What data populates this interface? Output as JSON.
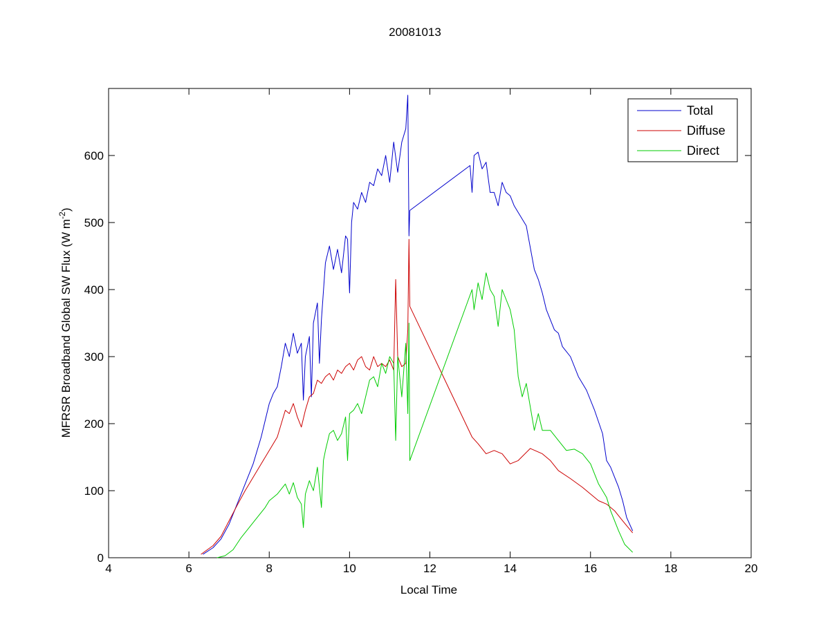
{
  "chart_data": {
    "type": "line",
    "title": "20081013",
    "xlabel": "Local Time",
    "ylabel_main": "MFRSR Broadband Global SW Flux (W m",
    "ylabel_exp": "-2",
    "ylabel_close": ")",
    "xlim": [
      4,
      20
    ],
    "ylim": [
      0,
      700
    ],
    "xticks": [
      "4",
      "6",
      "8",
      "10",
      "12",
      "14",
      "16",
      "18",
      "20"
    ],
    "yticks": [
      "0",
      "100",
      "200",
      "300",
      "400",
      "500",
      "600"
    ],
    "grid": false,
    "legend_position": "top-right",
    "series": [
      {
        "name": "Total",
        "color": "#0000cc",
        "points": [
          [
            6.35,
            5
          ],
          [
            6.6,
            15
          ],
          [
            6.8,
            28
          ],
          [
            7.0,
            50
          ],
          [
            7.2,
            80
          ],
          [
            7.4,
            110
          ],
          [
            7.6,
            140
          ],
          [
            7.8,
            180
          ],
          [
            8.0,
            230
          ],
          [
            8.1,
            245
          ],
          [
            8.2,
            255
          ],
          [
            8.3,
            285
          ],
          [
            8.4,
            320
          ],
          [
            8.5,
            300
          ],
          [
            8.6,
            335
          ],
          [
            8.7,
            305
          ],
          [
            8.8,
            320
          ],
          [
            8.85,
            235
          ],
          [
            8.9,
            300
          ],
          [
            9.0,
            330
          ],
          [
            9.05,
            240
          ],
          [
            9.1,
            350
          ],
          [
            9.2,
            380
          ],
          [
            9.25,
            290
          ],
          [
            9.3,
            355
          ],
          [
            9.4,
            440
          ],
          [
            9.5,
            465
          ],
          [
            9.6,
            430
          ],
          [
            9.7,
            460
          ],
          [
            9.8,
            425
          ],
          [
            9.9,
            480
          ],
          [
            9.95,
            475
          ],
          [
            10.0,
            395
          ],
          [
            10.05,
            500
          ],
          [
            10.1,
            530
          ],
          [
            10.2,
            520
          ],
          [
            10.3,
            545
          ],
          [
            10.4,
            530
          ],
          [
            10.5,
            560
          ],
          [
            10.6,
            555
          ],
          [
            10.7,
            580
          ],
          [
            10.8,
            570
          ],
          [
            10.9,
            600
          ],
          [
            11.0,
            560
          ],
          [
            11.1,
            620
          ],
          [
            11.2,
            575
          ],
          [
            11.3,
            620
          ],
          [
            11.4,
            640
          ],
          [
            11.45,
            690
          ],
          [
            11.48,
            480
          ],
          [
            11.5,
            518
          ],
          [
            13.0,
            585
          ],
          [
            13.05,
            545
          ],
          [
            13.1,
            600
          ],
          [
            13.2,
            605
          ],
          [
            13.3,
            580
          ],
          [
            13.4,
            590
          ],
          [
            13.5,
            545
          ],
          [
            13.6,
            545
          ],
          [
            13.7,
            525
          ],
          [
            13.8,
            560
          ],
          [
            13.9,
            545
          ],
          [
            14.0,
            540
          ],
          [
            14.1,
            525
          ],
          [
            14.2,
            515
          ],
          [
            14.4,
            495
          ],
          [
            14.6,
            430
          ],
          [
            14.7,
            415
          ],
          [
            14.8,
            395
          ],
          [
            14.9,
            370
          ],
          [
            15.0,
            355
          ],
          [
            15.1,
            340
          ],
          [
            15.2,
            335
          ],
          [
            15.3,
            315
          ],
          [
            15.5,
            300
          ],
          [
            15.7,
            270
          ],
          [
            15.9,
            250
          ],
          [
            16.1,
            220
          ],
          [
            16.3,
            185
          ],
          [
            16.4,
            145
          ],
          [
            16.5,
            135
          ],
          [
            16.6,
            120
          ],
          [
            16.7,
            105
          ],
          [
            16.8,
            85
          ],
          [
            16.9,
            60
          ],
          [
            17.05,
            40
          ]
        ]
      },
      {
        "name": "Diffuse",
        "color": "#cc0000",
        "points": [
          [
            6.3,
            5
          ],
          [
            6.6,
            18
          ],
          [
            6.8,
            32
          ],
          [
            7.0,
            55
          ],
          [
            7.2,
            78
          ],
          [
            7.4,
            100
          ],
          [
            7.6,
            120
          ],
          [
            7.8,
            140
          ],
          [
            8.0,
            160
          ],
          [
            8.2,
            180
          ],
          [
            8.3,
            200
          ],
          [
            8.4,
            220
          ],
          [
            8.5,
            215
          ],
          [
            8.6,
            230
          ],
          [
            8.7,
            210
          ],
          [
            8.8,
            195
          ],
          [
            8.9,
            220
          ],
          [
            9.0,
            240
          ],
          [
            9.1,
            245
          ],
          [
            9.2,
            265
          ],
          [
            9.3,
            260
          ],
          [
            9.4,
            270
          ],
          [
            9.5,
            275
          ],
          [
            9.6,
            265
          ],
          [
            9.7,
            280
          ],
          [
            9.8,
            275
          ],
          [
            9.9,
            285
          ],
          [
            10.0,
            290
          ],
          [
            10.1,
            280
          ],
          [
            10.2,
            295
          ],
          [
            10.3,
            300
          ],
          [
            10.4,
            285
          ],
          [
            10.5,
            280
          ],
          [
            10.6,
            300
          ],
          [
            10.7,
            285
          ],
          [
            10.8,
            290
          ],
          [
            10.9,
            285
          ],
          [
            11.0,
            295
          ],
          [
            11.1,
            280
          ],
          [
            11.15,
            415
          ],
          [
            11.2,
            300
          ],
          [
            11.3,
            285
          ],
          [
            11.4,
            290
          ],
          [
            11.45,
            340
          ],
          [
            11.48,
            475
          ],
          [
            11.5,
            375
          ],
          [
            13.05,
            180
          ],
          [
            13.2,
            170
          ],
          [
            13.4,
            155
          ],
          [
            13.6,
            160
          ],
          [
            13.8,
            155
          ],
          [
            14.0,
            140
          ],
          [
            14.2,
            145
          ],
          [
            14.5,
            163
          ],
          [
            14.8,
            155
          ],
          [
            15.0,
            145
          ],
          [
            15.2,
            130
          ],
          [
            15.5,
            118
          ],
          [
            15.8,
            105
          ],
          [
            16.0,
            95
          ],
          [
            16.2,
            85
          ],
          [
            16.4,
            80
          ],
          [
            16.6,
            70
          ],
          [
            16.8,
            55
          ],
          [
            17.05,
            37
          ]
        ]
      },
      {
        "name": "Direct",
        "color": "#00cc00",
        "points": [
          [
            6.7,
            0
          ],
          [
            6.9,
            3
          ],
          [
            7.1,
            12
          ],
          [
            7.3,
            30
          ],
          [
            7.5,
            45
          ],
          [
            7.7,
            60
          ],
          [
            7.9,
            75
          ],
          [
            8.0,
            85
          ],
          [
            8.2,
            95
          ],
          [
            8.4,
            110
          ],
          [
            8.5,
            95
          ],
          [
            8.6,
            112
          ],
          [
            8.7,
            90
          ],
          [
            8.8,
            80
          ],
          [
            8.85,
            45
          ],
          [
            8.9,
            95
          ],
          [
            9.0,
            115
          ],
          [
            9.1,
            100
          ],
          [
            9.2,
            135
          ],
          [
            9.3,
            75
          ],
          [
            9.35,
            145
          ],
          [
            9.4,
            160
          ],
          [
            9.5,
            185
          ],
          [
            9.6,
            190
          ],
          [
            9.7,
            175
          ],
          [
            9.8,
            185
          ],
          [
            9.9,
            210
          ],
          [
            9.95,
            145
          ],
          [
            10.0,
            215
          ],
          [
            10.1,
            220
          ],
          [
            10.2,
            230
          ],
          [
            10.3,
            215
          ],
          [
            10.4,
            240
          ],
          [
            10.5,
            265
          ],
          [
            10.6,
            270
          ],
          [
            10.7,
            255
          ],
          [
            10.8,
            290
          ],
          [
            10.9,
            275
          ],
          [
            11.0,
            300
          ],
          [
            11.1,
            290
          ],
          [
            11.15,
            175
          ],
          [
            11.2,
            300
          ],
          [
            11.3,
            240
          ],
          [
            11.4,
            320
          ],
          [
            11.45,
            215
          ],
          [
            11.48,
            350
          ],
          [
            11.5,
            145
          ],
          [
            13.05,
            400
          ],
          [
            13.1,
            370
          ],
          [
            13.2,
            410
          ],
          [
            13.3,
            385
          ],
          [
            13.4,
            425
          ],
          [
            13.5,
            400
          ],
          [
            13.6,
            390
          ],
          [
            13.7,
            345
          ],
          [
            13.8,
            400
          ],
          [
            13.9,
            385
          ],
          [
            14.0,
            370
          ],
          [
            14.1,
            340
          ],
          [
            14.2,
            270
          ],
          [
            14.3,
            240
          ],
          [
            14.4,
            260
          ],
          [
            14.5,
            225
          ],
          [
            14.6,
            190
          ],
          [
            14.7,
            215
          ],
          [
            14.8,
            190
          ],
          [
            15.0,
            190
          ],
          [
            15.2,
            175
          ],
          [
            15.4,
            160
          ],
          [
            15.6,
            162
          ],
          [
            15.8,
            155
          ],
          [
            16.0,
            140
          ],
          [
            16.2,
            110
          ],
          [
            16.4,
            90
          ],
          [
            16.5,
            70
          ],
          [
            16.7,
            40
          ],
          [
            16.85,
            20
          ],
          [
            17.05,
            8
          ]
        ]
      }
    ]
  }
}
